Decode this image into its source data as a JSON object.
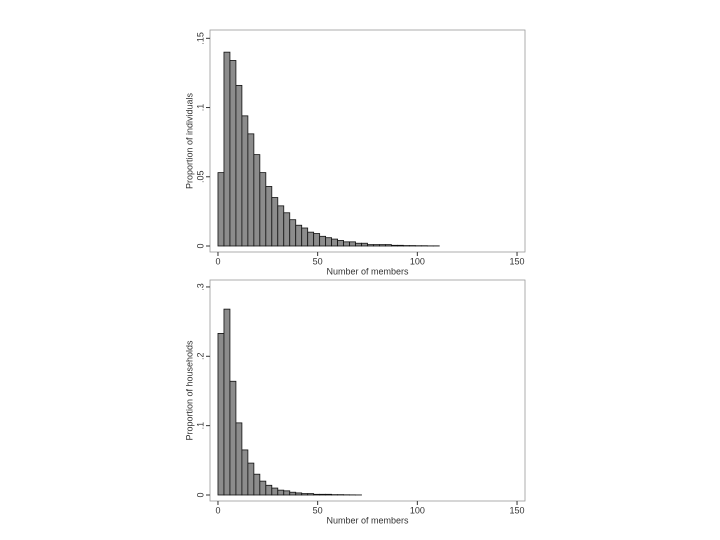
{
  "chart_data": [
    {
      "type": "histogram",
      "xlabel": "Number of members",
      "ylabel": "Proportion of individuals",
      "bins": [
        0,
        3,
        6,
        9,
        12,
        15,
        18,
        21,
        24,
        27,
        30,
        33,
        36,
        39,
        42,
        45,
        48,
        51,
        54,
        57,
        60,
        63,
        66,
        69,
        72,
        75,
        78,
        81,
        84,
        87,
        90,
        93,
        96,
        99,
        102,
        105,
        108,
        111,
        114,
        117,
        120,
        123,
        126,
        129,
        132,
        135,
        138,
        141,
        144,
        147,
        150
      ],
      "counts": [
        0.053,
        0.14,
        0.134,
        0.116,
        0.094,
        0.081,
        0.066,
        0.053,
        0.043,
        0.035,
        0.029,
        0.024,
        0.019,
        0.015,
        0.013,
        0.01,
        0.009,
        0.007,
        0.006,
        0.005,
        0.004,
        0.003,
        0.003,
        0.002,
        0.002,
        0.001,
        0.001,
        0.001,
        0.001,
        0.0005,
        0.0005,
        0.0003,
        0.0003,
        0.0002,
        0.0002,
        0.0001,
        0.0001,
        0,
        0,
        0,
        0,
        0,
        0,
        0,
        0,
        0,
        0,
        0,
        0,
        0
      ],
      "color": "#8c8c8c",
      "xlim": [
        -4,
        154
      ],
      "xticks": [
        0,
        50,
        100,
        150
      ],
      "ylim": [
        0,
        0.156
      ],
      "yticks": [
        0,
        {
          "value": 0.05,
          "label": ".05"
        },
        {
          "value": 0.1,
          "label": ".1"
        },
        {
          "value": 0.15,
          "label": ".15"
        }
      ]
    },
    {
      "type": "histogram",
      "xlabel": "Number of members",
      "ylabel": "Proportion of households",
      "bins": [
        0,
        3,
        6,
        9,
        12,
        15,
        18,
        21,
        24,
        27,
        30,
        33,
        36,
        39,
        42,
        45,
        48,
        51,
        54,
        57,
        60,
        63,
        66,
        69,
        72,
        75,
        78,
        81,
        84,
        87,
        90,
        93,
        96,
        99,
        102,
        105,
        108,
        111,
        114,
        117,
        120,
        123,
        126,
        129,
        132,
        135,
        138,
        141,
        144,
        147,
        150
      ],
      "counts": [
        0.233,
        0.268,
        0.164,
        0.104,
        0.065,
        0.046,
        0.03,
        0.02,
        0.014,
        0.01,
        0.007,
        0.006,
        0.004,
        0.003,
        0.002,
        0.002,
        0.001,
        0.001,
        0.001,
        0.0005,
        0.0005,
        0.0003,
        0.0002,
        0.0001,
        0,
        0,
        0,
        0,
        0,
        0,
        0,
        0,
        0,
        0,
        0,
        0,
        0,
        0,
        0,
        0,
        0,
        0,
        0,
        0,
        0,
        0,
        0,
        0,
        0,
        0
      ],
      "color": "#8c8c8c",
      "xlim": [
        -4,
        154
      ],
      "xticks": [
        0,
        50,
        100,
        150
      ],
      "ylim": [
        0,
        0.31
      ],
      "yticks": [
        0,
        {
          "value": 0.1,
          "label": ".1"
        },
        {
          "value": 0.2,
          "label": ".2"
        },
        {
          "value": 0.3,
          "label": ".3"
        }
      ]
    }
  ]
}
